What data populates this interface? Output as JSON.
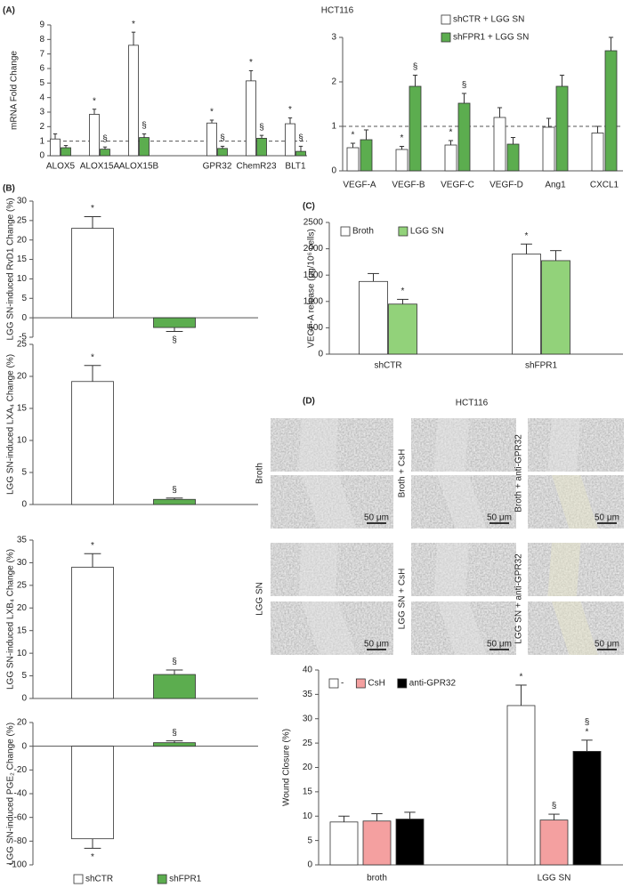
{
  "chart_data": [
    {
      "type": "bar",
      "title": "HCT116",
      "panel": "(A)",
      "y_label": "mRNA Fold Change",
      "categories": [
        "ALOX5",
        "ALOX15A",
        "ALOX15B",
        null,
        "GPR32",
        "ChemR23",
        "BLT1"
      ],
      "series": [
        {
          "color": "#ffffff",
          "values": [
            1.15,
            2.85,
            7.6,
            null,
            2.25,
            5.15,
            2.2
          ],
          "errors": [
            0.35,
            0.35,
            0.9,
            null,
            0.2,
            0.7,
            0.4
          ],
          "marks": [
            null,
            "*",
            "*",
            null,
            "*",
            "*",
            "*"
          ]
        },
        {
          "color": "#5cad4f",
          "values": [
            0.55,
            0.45,
            1.25,
            null,
            0.5,
            1.2,
            0.3
          ],
          "errors": [
            0.15,
            0.15,
            0.25,
            null,
            0.15,
            0.2,
            0.35
          ],
          "marks": [
            null,
            "§",
            "§",
            null,
            "§",
            "§",
            "§"
          ]
        }
      ],
      "ylim": [
        0,
        9
      ],
      "yticks": [
        0,
        1,
        2,
        3,
        4,
        5,
        6,
        7,
        8,
        9
      ],
      "reference_line": 1
    },
    {
      "type": "bar",
      "categories": [
        "VEGF-A",
        "VEGF-B",
        "VEGF-C",
        "VEGF-D",
        "Ang1",
        "CXCL1"
      ],
      "series": [
        {
          "name": "shCTR + LGG SN",
          "color": "#ffffff",
          "values": [
            0.52,
            0.48,
            0.58,
            1.2,
            0.98,
            0.85
          ],
          "errors": [
            0.1,
            0.07,
            0.1,
            0.22,
            0.2,
            0.15
          ],
          "marks": [
            "*",
            "*",
            "*",
            null,
            null,
            null
          ]
        },
        {
          "name": "shFPR1 + LGG SN",
          "color": "#5cad4f",
          "values": [
            0.7,
            1.9,
            1.52,
            0.6,
            1.9,
            2.7
          ],
          "errors": [
            0.22,
            0.25,
            0.22,
            0.15,
            0.25,
            0.3
          ],
          "marks": [
            null,
            "§",
            "§",
            null,
            null,
            null
          ]
        }
      ],
      "ylim": [
        0,
        3
      ],
      "yticks": [
        0,
        1,
        2,
        3
      ],
      "reference_line": 1
    },
    {
      "type": "bar",
      "panel": "(B)",
      "y_label": "LGG SN-induced RvD1 Change (%)",
      "values": [
        23,
        -2.5
      ],
      "errors": [
        3,
        1
      ],
      "marks": [
        "*",
        "§"
      ],
      "colors": [
        "#ffffff",
        "#5cad4f"
      ],
      "ylim": [
        -5,
        30
      ],
      "yticks": [
        -5,
        0,
        5,
        10,
        15,
        20,
        25,
        30
      ]
    },
    {
      "type": "bar",
      "y_label": "LGG SN-induced LXA₄ Change (%)",
      "values": [
        19.2,
        0.8
      ],
      "errors": [
        2.5,
        0.2
      ],
      "marks": [
        "*",
        "§"
      ],
      "colors": [
        "#ffffff",
        "#5cad4f"
      ],
      "ylim": [
        0,
        25
      ],
      "yticks": [
        0,
        5,
        10,
        15,
        20,
        25
      ]
    },
    {
      "type": "bar",
      "y_label": "LGG SN-induced LXB₄ Change (%)",
      "values": [
        29,
        5.3
      ],
      "errors": [
        3,
        1
      ],
      "marks": [
        "*",
        "§"
      ],
      "colors": [
        "#ffffff",
        "#5cad4f"
      ],
      "ylim": [
        0,
        35
      ],
      "yticks": [
        0,
        5,
        10,
        15,
        20,
        25,
        30,
        35
      ]
    },
    {
      "type": "bar",
      "y_label": "LGG SN-induced PGE₂ Change (%)",
      "values": [
        -78,
        3
      ],
      "errors": [
        8,
        1.5
      ],
      "marks": [
        "*",
        "§"
      ],
      "colors": [
        "#ffffff",
        "#5cad4f"
      ],
      "legend": [
        "shCTR",
        "shFPR1"
      ],
      "ylim": [
        -100,
        20
      ],
      "yticks": [
        -100,
        -80,
        -60,
        -40,
        -20,
        0,
        20
      ]
    },
    {
      "type": "bar",
      "panel": "(C)",
      "y_label": "VEGF-A release (pg/10⁶ cells)",
      "categories": [
        "shCTR",
        "shFPR1"
      ],
      "series": [
        {
          "name": "Broth",
          "color": "#ffffff",
          "values": [
            1380,
            1900
          ],
          "errors": [
            150,
            190
          ],
          "marks": [
            null,
            "*"
          ]
        },
        {
          "name": "LGG SN",
          "color": "#92d27a",
          "values": [
            950,
            1775
          ],
          "errors": [
            90,
            190
          ],
          "marks": [
            "*",
            null
          ]
        }
      ],
      "ylim": [
        0,
        2500
      ],
      "yticks": [
        0,
        500,
        1000,
        1500,
        2000,
        2500
      ]
    },
    {
      "type": "bar",
      "y_label": "Wound Closure (%)",
      "categories": [
        "broth",
        "LGG SN"
      ],
      "series": [
        {
          "name": "-",
          "color": "#ffffff",
          "values": [
            8.8,
            32.7
          ],
          "errors": [
            1.2,
            4.2
          ],
          "marks": [
            null,
            "*"
          ]
        },
        {
          "name": "CsH",
          "color": "#f4a0a0",
          "values": [
            9,
            9.2
          ],
          "errors": [
            1.5,
            1.2
          ],
          "marks": [
            null,
            "§"
          ]
        },
        {
          "name": "anti-GPR32",
          "color": "#000000",
          "values": [
            9.4,
            23.3
          ],
          "errors": [
            1.4,
            2.3
          ],
          "marks": [
            null,
            [
              "§",
              "*"
            ]
          ]
        }
      ],
      "ylim": [
        0,
        40
      ],
      "yticks": [
        0,
        5,
        10,
        15,
        20,
        25,
        30,
        35,
        40
      ]
    }
  ],
  "micrographs": {
    "panel": "(D)",
    "title": "HCT116",
    "labels": [
      "Broth",
      "Broth + CsH",
      "Broth + anti-GPR32",
      "LGG SN",
      "LGG SN + CsH",
      "LGG SN + anti-GPR32"
    ],
    "scale_bar": "50 μm"
  }
}
